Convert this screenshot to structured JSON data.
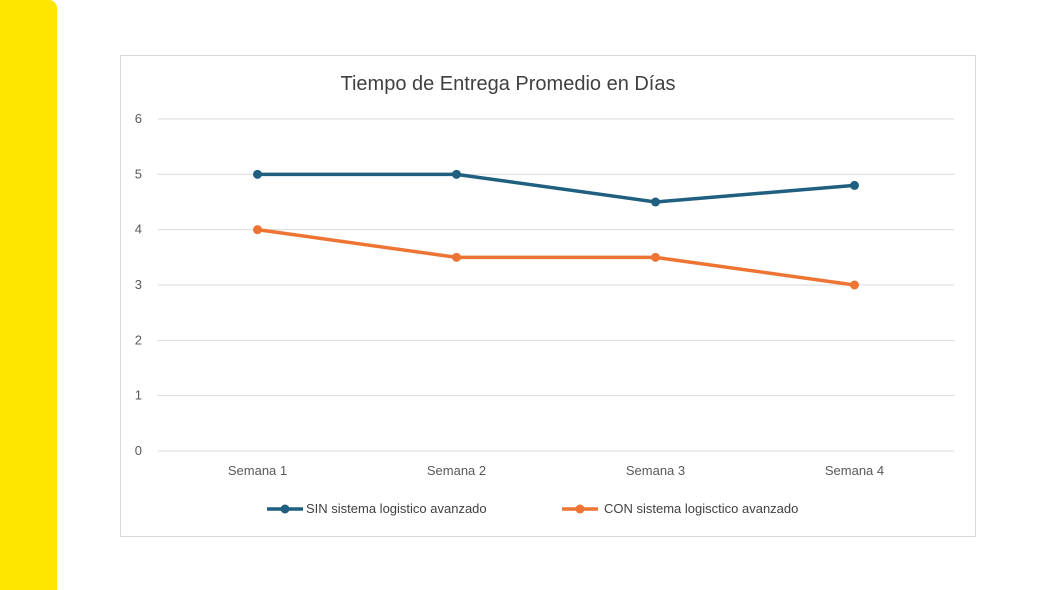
{
  "colors": {
    "accent": "#ffe600",
    "series_sin": "#1f5f7f",
    "series_con": "#ee7433",
    "grid": "#d9d9d9"
  },
  "chart_data": {
    "type": "line",
    "title": "Tiempo de Entrega Promedio en Días",
    "xlabel": "",
    "ylabel": "",
    "categories": [
      "Semana 1",
      "Semana 2",
      "Semana 3",
      "Semana 4"
    ],
    "ylim": [
      0,
      6
    ],
    "yticks": [
      "0",
      "1",
      "2",
      "3",
      "4",
      "5",
      "6"
    ],
    "grid": true,
    "legend_position": "bottom",
    "series": [
      {
        "name": "SIN sistema logistico avanzado",
        "values": [
          5,
          5,
          4.5,
          4.8
        ],
        "color": "#1f5f7f"
      },
      {
        "name": "CON sistema logisctico avanzado",
        "values": [
          4,
          3.5,
          3.5,
          3
        ],
        "color": "#ee7433"
      }
    ]
  }
}
